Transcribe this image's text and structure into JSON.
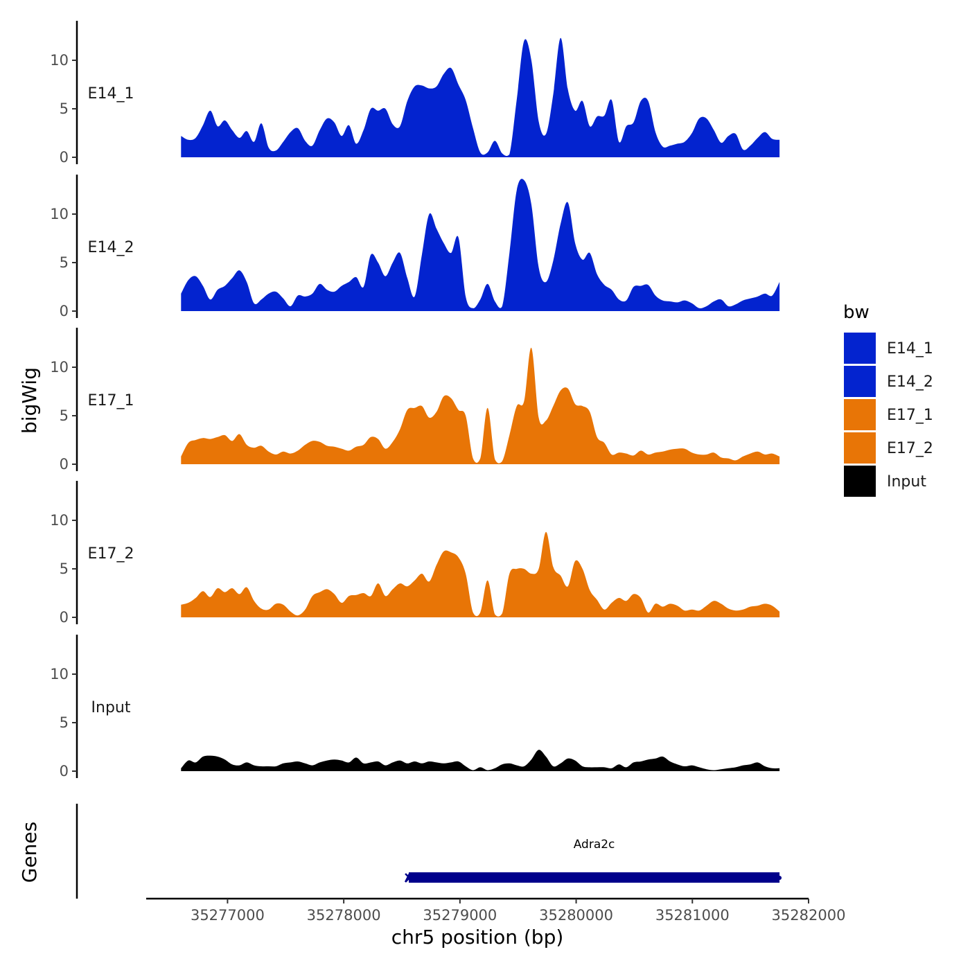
{
  "chart_data": {
    "type": "area",
    "ylabel": "bigWig",
    "xlabel": "chr5 position (bp)",
    "genes_label": "Genes",
    "xlim": [
      35276300,
      35282000
    ],
    "data_xrange": [
      35276600,
      35281750
    ],
    "x_ticks": [
      35277000,
      35278000,
      35279000,
      35280000,
      35281000,
      35282000
    ],
    "x_tick_labels": [
      "35277000",
      "35278000",
      "35279000",
      "35280000",
      "35281000",
      "35282000"
    ],
    "ylim": [
      0,
      14.5
    ],
    "y_ticks": [
      0,
      5,
      10
    ],
    "y_tick_labels": [
      "0",
      "5",
      "10"
    ],
    "legend": {
      "title": "bw",
      "entries": [
        {
          "label": "E14_1",
          "color": "#0323cf"
        },
        {
          "label": "E14_2",
          "color": "#0323cf"
        },
        {
          "label": "E17_1",
          "color": "#e87506"
        },
        {
          "label": "E17_2",
          "color": "#e87506"
        },
        {
          "label": "Input",
          "color": "#000000"
        }
      ]
    },
    "series": [
      {
        "name": "E14_1",
        "color": "#0323cf",
        "values": [
          2.2,
          1.8,
          2.0,
          3.3,
          4.8,
          3.2,
          3.8,
          2.8,
          2.0,
          2.7,
          1.6,
          3.5,
          1.0,
          0.7,
          1.6,
          2.6,
          3.0,
          1.7,
          1.2,
          2.8,
          4.0,
          3.6,
          2.2,
          3.3,
          1.4,
          2.8,
          5.0,
          4.8,
          5.0,
          3.4,
          3.2,
          5.8,
          7.3,
          7.4,
          7.1,
          7.3,
          8.6,
          9.2,
          7.5,
          5.9,
          3.0,
          0.5,
          0.5,
          1.7,
          0.4,
          0.3,
          6.0,
          12.0,
          10.0,
          3.7,
          2.4,
          6.5,
          12.3,
          7.0,
          4.8,
          5.8,
          3.2,
          4.2,
          4.3,
          5.9,
          1.6,
          3.2,
          3.6,
          5.8,
          5.8,
          2.6,
          1.1,
          1.2,
          1.4,
          1.6,
          2.5,
          4.0,
          4.0,
          2.8,
          1.5,
          2.2,
          2.4,
          0.8,
          1.2,
          2.0,
          2.6,
          1.9,
          1.8
        ]
      },
      {
        "name": "E14_2",
        "color": "#0323cf",
        "values": [
          1.8,
          3.2,
          3.6,
          2.6,
          1.2,
          2.2,
          2.6,
          3.4,
          4.2,
          3.0,
          0.8,
          1.2,
          1.8,
          2.0,
          1.3,
          0.5,
          1.6,
          1.5,
          1.8,
          2.8,
          2.2,
          2.0,
          2.6,
          3.0,
          3.5,
          2.5,
          5.8,
          5.0,
          3.6,
          5.0,
          6.0,
          3.4,
          1.5,
          5.8,
          10.0,
          8.5,
          7.0,
          6.0,
          7.6,
          1.5,
          0.3,
          1.2,
          2.8,
          1.0,
          0.5,
          6.0,
          12.5,
          13.5,
          11.0,
          4.5,
          3.0,
          5.2,
          9.0,
          11.2,
          7.0,
          5.3,
          6.0,
          3.8,
          2.7,
          2.2,
          1.2,
          1.1,
          2.5,
          2.6,
          2.7,
          1.6,
          1.1,
          1.0,
          0.9,
          1.1,
          0.8,
          0.3,
          0.5,
          1.0,
          1.2,
          0.5,
          0.7,
          1.1,
          1.3,
          1.5,
          1.8,
          1.6,
          3.0
        ]
      },
      {
        "name": "E17_1",
        "color": "#e87506",
        "values": [
          0.8,
          2.2,
          2.5,
          2.7,
          2.6,
          2.8,
          3.0,
          2.4,
          3.1,
          2.0,
          1.7,
          1.9,
          1.3,
          1.0,
          1.3,
          1.1,
          1.4,
          2.0,
          2.4,
          2.3,
          1.9,
          1.8,
          1.6,
          1.4,
          1.8,
          2.0,
          2.8,
          2.6,
          1.6,
          2.3,
          3.6,
          5.6,
          5.8,
          6.0,
          4.8,
          5.4,
          7.0,
          6.8,
          5.6,
          5.0,
          0.6,
          0.6,
          5.8,
          0.5,
          0.3,
          3.0,
          6.0,
          6.5,
          12.0,
          4.8,
          4.5,
          6.0,
          7.6,
          7.8,
          6.2,
          6.0,
          5.4,
          2.8,
          2.2,
          1.0,
          1.2,
          1.1,
          0.9,
          1.4,
          1.0,
          1.2,
          1.3,
          1.5,
          1.6,
          1.6,
          1.2,
          1.0,
          1.0,
          1.2,
          0.7,
          0.6,
          0.4,
          0.8,
          1.1,
          1.3,
          1.0,
          1.1,
          0.8
        ]
      },
      {
        "name": "E17_2",
        "color": "#e87506",
        "values": [
          1.3,
          1.5,
          2.0,
          2.7,
          2.1,
          3.0,
          2.6,
          3.0,
          2.4,
          3.1,
          1.7,
          0.9,
          0.8,
          1.4,
          1.3,
          0.6,
          0.2,
          0.8,
          2.2,
          2.6,
          2.9,
          2.4,
          1.5,
          2.2,
          2.3,
          2.5,
          2.2,
          3.5,
          2.2,
          2.9,
          3.5,
          3.2,
          3.8,
          4.5,
          3.7,
          5.4,
          6.8,
          6.7,
          6.2,
          4.5,
          0.5,
          0.5,
          3.8,
          0.3,
          0.4,
          4.5,
          5.0,
          5.0,
          4.5,
          5.0,
          8.8,
          5.2,
          4.3,
          3.2,
          5.8,
          5.0,
          2.8,
          1.8,
          0.8,
          1.5,
          2.0,
          1.7,
          2.4,
          2.0,
          0.5,
          1.4,
          1.1,
          1.4,
          1.2,
          0.7,
          0.8,
          0.7,
          1.2,
          1.7,
          1.4,
          0.9,
          0.7,
          0.8,
          1.1,
          1.2,
          1.4,
          1.2,
          0.6
        ]
      },
      {
        "name": "Input",
        "color": "#000000",
        "values": [
          0.3,
          1.1,
          0.9,
          1.5,
          1.6,
          1.5,
          1.2,
          0.7,
          0.6,
          0.9,
          0.6,
          0.5,
          0.5,
          0.5,
          0.8,
          0.9,
          1.0,
          0.8,
          0.6,
          0.9,
          1.1,
          1.2,
          1.1,
          0.9,
          1.4,
          0.8,
          0.9,
          1.0,
          0.6,
          0.9,
          1.1,
          0.8,
          1.0,
          0.8,
          1.0,
          0.9,
          0.8,
          0.9,
          1.0,
          0.5,
          0.1,
          0.4,
          0.1,
          0.3,
          0.7,
          0.8,
          0.6,
          0.5,
          1.2,
          2.2,
          1.5,
          0.5,
          0.8,
          1.3,
          1.1,
          0.5,
          0.4,
          0.4,
          0.4,
          0.3,
          0.7,
          0.4,
          0.9,
          1.0,
          1.2,
          1.3,
          1.5,
          1.0,
          0.7,
          0.5,
          0.6,
          0.4,
          0.2,
          0.1,
          0.2,
          0.3,
          0.4,
          0.6,
          0.7,
          0.9,
          0.5,
          0.3,
          0.3
        ]
      }
    ],
    "genes": [
      {
        "name": "Adra2c",
        "start": 35278560,
        "end": 35281750,
        "color": "#00008b"
      }
    ]
  }
}
